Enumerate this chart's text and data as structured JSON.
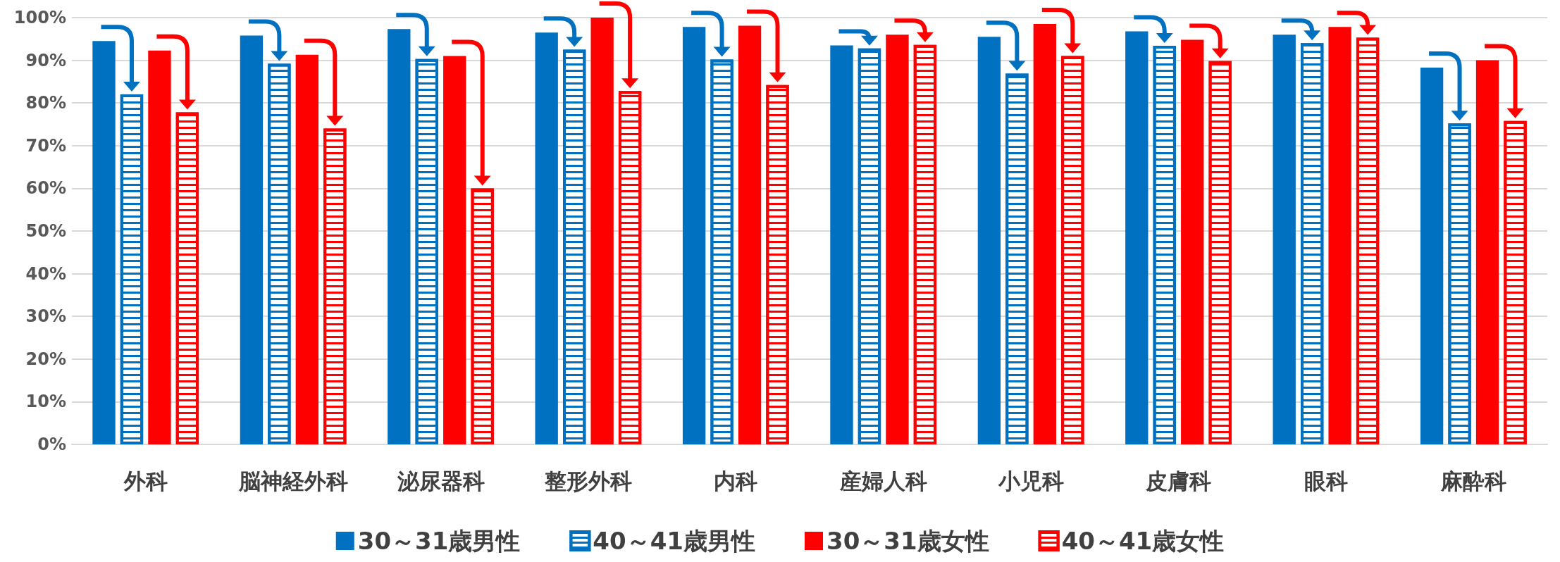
{
  "chart_data": {
    "type": "bar",
    "categories": [
      "外科",
      "脳神経外科",
      "泌尿器科",
      "整形外科",
      "内科",
      "産婦人科",
      "小児科",
      "皮膚科",
      "眼科",
      "麻酔科"
    ],
    "series": [
      {
        "name": "30～31歳男性",
        "color": "#0070c0",
        "values": [
          94.5,
          95.8,
          97.3,
          96.5,
          97.8,
          93.5,
          95.5,
          96.8,
          96,
          88.3
        ]
      },
      {
        "name": "40～41歳男性",
        "color": "#0070c0",
        "values": [
          82,
          89.2,
          90.3,
          92.5,
          90.2,
          92.8,
          86.9,
          93.4,
          94,
          75.2
        ]
      },
      {
        "name": "30～31歳女性",
        "color": "#ff0000",
        "values": [
          92.3,
          91.3,
          91,
          100,
          98.1,
          96,
          98.5,
          94.8,
          97.8,
          90
        ]
      },
      {
        "name": "40～41歳女性",
        "color": "#ff0000",
        "values": [
          77.8,
          74,
          60,
          82.8,
          84.2,
          93.6,
          91,
          89.8,
          95.3,
          75.8
        ]
      }
    ],
    "ylim": [
      0,
      100
    ],
    "yticks": [
      {
        "value": 0,
        "label": "0%"
      },
      {
        "value": 10,
        "label": "10%"
      },
      {
        "value": 20,
        "label": "20%"
      },
      {
        "value": 30,
        "label": "30%"
      },
      {
        "value": 40,
        "label": "40%"
      },
      {
        "value": 50,
        "label": "50%"
      },
      {
        "value": 60,
        "label": "60%"
      },
      {
        "value": 70,
        "label": "70%"
      },
      {
        "value": 80,
        "label": "80%"
      },
      {
        "value": 90,
        "label": "90%"
      },
      {
        "value": 100,
        "label": "100%"
      }
    ],
    "grid": "y",
    "legend": "bottom"
  }
}
